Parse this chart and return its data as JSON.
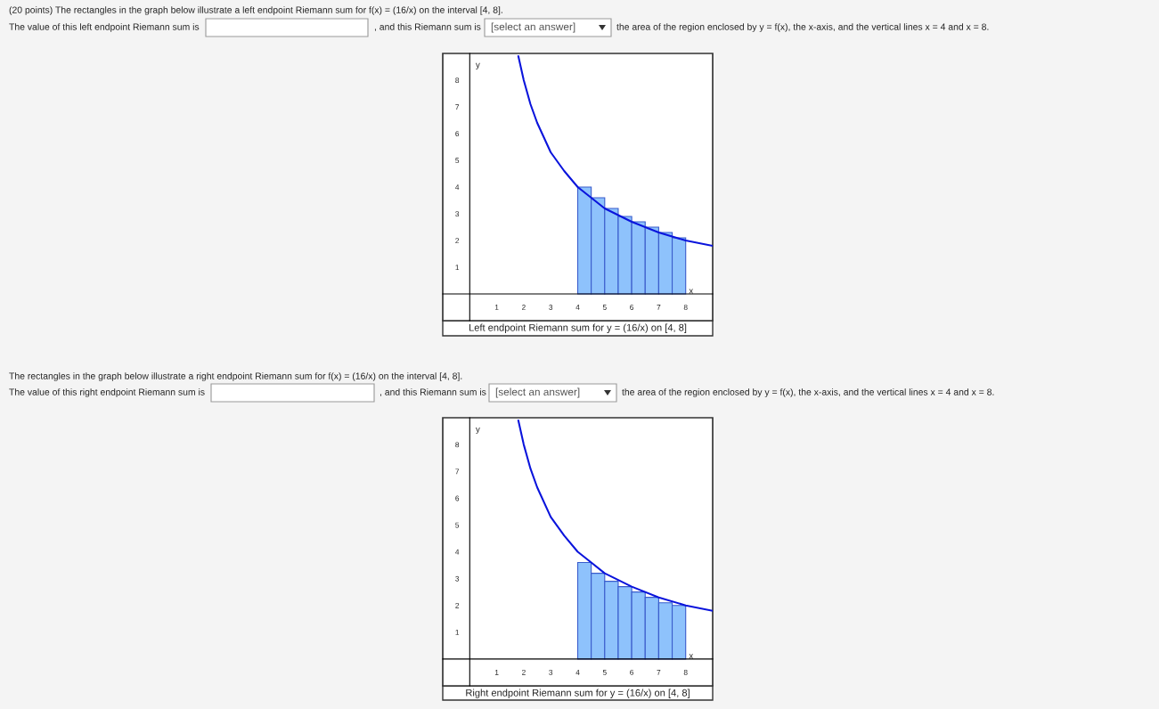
{
  "chart_data": [
    {
      "type": "bar",
      "title": "Left endpoint Riemann sum for y = (16/x) on [4, 8]",
      "xlabel": "x",
      "ylabel": "y",
      "annotations": [
        "(20 points) The rectangles in the graph below illustrate a left endpoint Riemann sum for f(x) = (16/x) on the interval [4, 8].",
        "The value of this left endpoint Riemann sum is",
        ", and this Riemann sum is",
        "[select an answer]",
        "the area of the region enclosed by y = f(x), the x-axis, and the vertical lines x = 4 and x = 8."
      ],
      "x": [
        4.25,
        4.75,
        5.25,
        5.75,
        6.25,
        6.75,
        7.25,
        7.75
      ],
      "xlim": [
        -1,
        9
      ],
      "ylim": [
        -1,
        9
      ],
      "xticks": [
        1,
        2,
        3,
        4,
        5,
        6,
        7,
        8
      ],
      "yticks": [
        1,
        2,
        3,
        4,
        5,
        6,
        7,
        8
      ],
      "grid": false,
      "legend": false,
      "series": [
        {
          "color": "#8ec2fc",
          "values": [
            4,
            3.6,
            3.2,
            2.9,
            2.7,
            2.5,
            2.3,
            2.1
          ]
        },
        {
          "type": "line",
          "color": "#0a14dc",
          "x": [
            1.8,
            2,
            2.25,
            2.5,
            3,
            3.5,
            4,
            4.5,
            5,
            6,
            7,
            8,
            9
          ],
          "values": [
            8.9,
            8,
            7.1,
            6.4,
            5.3,
            4.6,
            4,
            3.6,
            3.2,
            2.7,
            2.3,
            2,
            1.8
          ]
        }
      ]
    },
    {
      "type": "bar",
      "title": "Right endpoint Riemann sum for y = (16/x) on [4, 8]",
      "xlabel": "x",
      "ylabel": "y",
      "annotations": [
        "The rectangles in the graph below illustrate a right endpoint Riemann sum for f(x) = (16/x) on the interval [4, 8].",
        "The value of this right endpoint Riemann sum is",
        ", and this Riemann sum is",
        "[select an answer]",
        "the area of the region enclosed by y = f(x), the x-axis, and the vertical lines x = 4 and x = 8."
      ],
      "x": [
        4.25,
        4.75,
        5.25,
        5.75,
        6.25,
        6.75,
        7.25,
        7.75
      ],
      "xlim": [
        -1,
        9
      ],
      "ylim": [
        -1,
        9
      ],
      "xticks": [
        1,
        2,
        3,
        4,
        5,
        6,
        7,
        8
      ],
      "yticks": [
        1,
        2,
        3,
        4,
        5,
        6,
        7,
        8
      ],
      "grid": false,
      "legend": false,
      "series": [
        {
          "color": "#8ec2fc",
          "values": [
            3.6,
            3.2,
            2.9,
            2.7,
            2.5,
            2.3,
            2.1,
            2
          ]
        },
        {
          "type": "line",
          "color": "#0a14dc",
          "x": [
            1.8,
            2,
            2.25,
            2.5,
            3,
            3.5,
            4,
            4.5,
            5,
            6,
            7,
            8,
            9
          ],
          "values": [
            8.9,
            8,
            7.1,
            6.4,
            5.3,
            4.6,
            4,
            3.6,
            3.2,
            2.7,
            2.3,
            2,
            1.8
          ]
        }
      ]
    }
  ]
}
